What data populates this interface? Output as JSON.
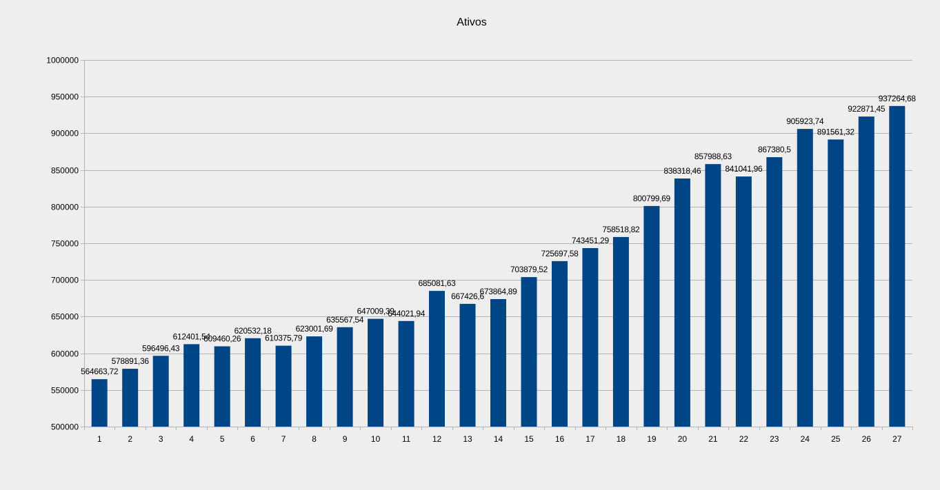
{
  "chart_data": {
    "type": "bar",
    "title": "Ativos",
    "xlabel": "",
    "ylabel": "",
    "ylim": [
      500000,
      1000000
    ],
    "y_ticks": [
      "500000",
      "550000",
      "600000",
      "650000",
      "700000",
      "750000",
      "800000",
      "850000",
      "900000",
      "950000",
      "1000000"
    ],
    "y_tick_values": [
      500000,
      550000,
      600000,
      650000,
      700000,
      750000,
      800000,
      850000,
      900000,
      950000,
      1000000
    ],
    "grid": true,
    "legend": "none",
    "bar_color": "#004586",
    "categories": [
      "1",
      "2",
      "3",
      "4",
      "5",
      "6",
      "7",
      "8",
      "9",
      "10",
      "11",
      "12",
      "13",
      "14",
      "15",
      "16",
      "17",
      "18",
      "19",
      "20",
      "21",
      "22",
      "23",
      "24",
      "25",
      "26",
      "27"
    ],
    "values": [
      564663.72,
      578891.36,
      596496.43,
      612401.54,
      609460.26,
      620532.18,
      610375.79,
      623001.69,
      635567.54,
      647009.39,
      644021.94,
      685081.63,
      667426.6,
      673864.89,
      703879.52,
      725697.58,
      743451.29,
      758518.82,
      800799.69,
      838318.46,
      857988.63,
      841041.96,
      867380.5,
      905923.74,
      891561.32,
      922871.45,
      937264.68
    ],
    "data_labels": [
      "564663,72",
      "578891,36",
      "596496,43",
      "612401,54",
      "609460,26",
      "620532,18",
      "610375,79",
      "623001,69",
      "635567,54",
      "647009,39",
      "644021,94",
      "685081,63",
      "667426,6",
      "673864,89",
      "703879,52",
      "725697,58",
      "743451,29",
      "758518,82",
      "800799,69",
      "838318,46",
      "857988,63",
      "841041,96",
      "867380,5",
      "905923,74",
      "891561,32",
      "922871,45",
      "937264,68"
    ]
  }
}
